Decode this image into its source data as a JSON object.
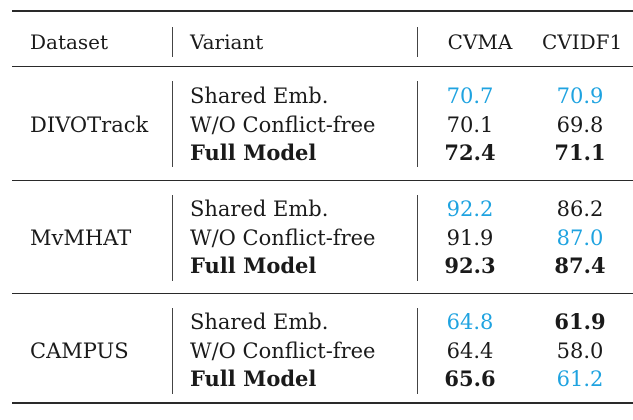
{
  "table": {
    "headers": {
      "dataset": "Dataset",
      "variant": "Variant",
      "cvma": "CVMA",
      "cvidf1": "CVIDF1"
    },
    "highlight_color": "#1fa3e0",
    "groups": [
      {
        "dataset": "DIVOTrack",
        "rows": [
          {
            "variant": "Shared Emb.",
            "cvma": "70.7",
            "cvidf1": "70.9",
            "cvma_style": "blue",
            "cvidf1_style": "blue",
            "bold": false
          },
          {
            "variant": "W/O Conflict-free",
            "cvma": "70.1",
            "cvidf1": "69.8",
            "cvma_style": "",
            "cvidf1_style": "",
            "bold": false
          },
          {
            "variant": "Full Model",
            "cvma": "72.4",
            "cvidf1": "71.1",
            "cvma_style": "bold",
            "cvidf1_style": "bold",
            "bold": true
          }
        ]
      },
      {
        "dataset": "MvMHAT",
        "rows": [
          {
            "variant": "Shared Emb.",
            "cvma": "92.2",
            "cvidf1": "86.2",
            "cvma_style": "blue",
            "cvidf1_style": "",
            "bold": false
          },
          {
            "variant": "W/O Conflict-free",
            "cvma": "91.9",
            "cvidf1": "87.0",
            "cvma_style": "",
            "cvidf1_style": "blue",
            "bold": false
          },
          {
            "variant": "Full Model",
            "cvma": "92.3",
            "cvidf1": "87.4",
            "cvma_style": "bold",
            "cvidf1_style": "bold",
            "bold": true
          }
        ]
      },
      {
        "dataset": "CAMPUS",
        "rows": [
          {
            "variant": "Shared Emb.",
            "cvma": "64.8",
            "cvidf1": "61.9",
            "cvma_style": "blue",
            "cvidf1_style": "bold",
            "bold": false
          },
          {
            "variant": "W/O Conflict-free",
            "cvma": "64.4",
            "cvidf1": "58.0",
            "cvma_style": "",
            "cvidf1_style": "",
            "bold": false
          },
          {
            "variant": "Full Model",
            "cvma": "65.6",
            "cvidf1": "61.2",
            "cvma_style": "bold",
            "cvidf1_style": "blue",
            "bold": true
          }
        ]
      }
    ]
  }
}
